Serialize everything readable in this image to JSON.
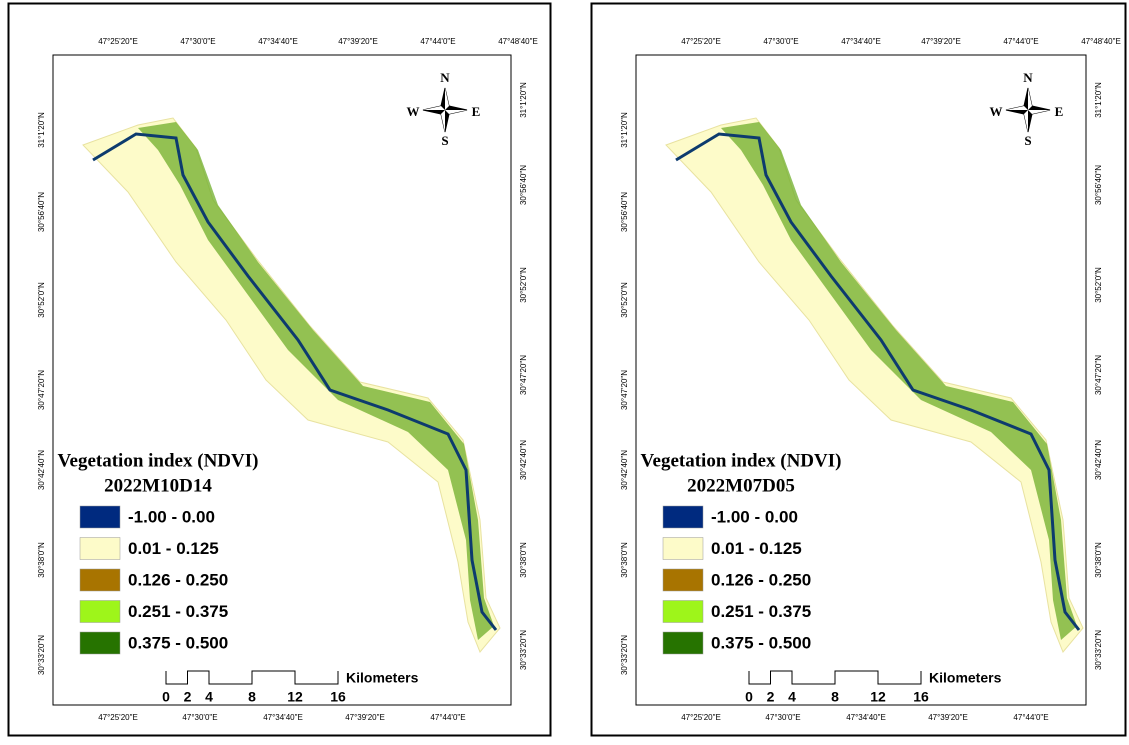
{
  "panels": [
    {
      "top_labels": [
        "47°25'20\"E",
        "47°30'0\"E",
        "47°34'40\"E",
        "47°39'20\"E",
        "47°44'0\"E",
        "47°48'40\"E"
      ],
      "bottom_labels": [
        "47°25'20\"E",
        "47°30'0\"E",
        "47°34'40\"E",
        "47°39'20\"E",
        "47°44'0\"E"
      ],
      "left_labels": [
        "31°1'20\"N",
        "30°56'40\"N",
        "30°52'0\"N",
        "30°47'20\"N",
        "30°42'40\"N",
        "30°38'0\"N",
        "30°33'20\"N"
      ],
      "right_labels": [
        "31°1'20\"N",
        "30°56'40\"N",
        "30°52'0\"N",
        "30°47'20\"N",
        "30°42'40\"N",
        "30°38'0\"N",
        "30°33'20\"N"
      ],
      "compass": {
        "n": "N",
        "s": "S",
        "e": "E",
        "w": "W"
      },
      "legend_title": "Vegetation index (NDVI)",
      "date": "2022M10D14",
      "legend": [
        {
          "label": "-1.00 - 0.00",
          "color": "#002a7f"
        },
        {
          "label": "0.01 - 0.125",
          "color": "#fdfbc9"
        },
        {
          "label": "0.126 - 0.250",
          "color": "#a87400"
        },
        {
          "label": "0.251 - 0.375",
          "color": "#9ef51a"
        },
        {
          "label": "0.375 - 0.500",
          "color": "#267300"
        }
      ],
      "scale_ticks": [
        0,
        2,
        4,
        8,
        12,
        16
      ],
      "scale_unit": "Kilometers"
    },
    {
      "top_labels": [
        "47°25'20\"E",
        "47°30'0\"E",
        "47°34'40\"E",
        "47°39'20\"E",
        "47°44'0\"E",
        "47°48'40\"E"
      ],
      "bottom_labels": [
        "47°25'20\"E",
        "47°30'0\"E",
        "47°34'40\"E",
        "47°39'20\"E",
        "47°44'0\"E"
      ],
      "left_labels": [
        "31°1'20\"N",
        "30°56'40\"N",
        "30°52'0\"N",
        "30°47'20\"N",
        "30°42'40\"N",
        "30°38'0\"N",
        "30°33'20\"N"
      ],
      "right_labels": [
        "31°1'20\"N",
        "30°56'40\"N",
        "30°52'0\"N",
        "30°47'20\"N",
        "30°42'40\"N",
        "30°38'0\"N",
        "30°33'20\"N"
      ],
      "compass": {
        "n": "N",
        "s": "S",
        "e": "E",
        "w": "W"
      },
      "legend_title": "Vegetation index (NDVI)",
      "date": "2022M07D05",
      "legend": [
        {
          "label": "-1.00 - 0.00",
          "color": "#002a7f"
        },
        {
          "label": "0.01 - 0.125",
          "color": "#fdfbc9"
        },
        {
          "label": "0.126 - 0.250",
          "color": "#a87400"
        },
        {
          "label": "0.251 - 0.375",
          "color": "#9ef51a"
        },
        {
          "label": "0.375 - 0.500",
          "color": "#267300"
        }
      ],
      "scale_ticks": [
        0,
        2,
        4,
        8,
        12,
        16
      ],
      "scale_unit": "Kilometers"
    }
  ]
}
